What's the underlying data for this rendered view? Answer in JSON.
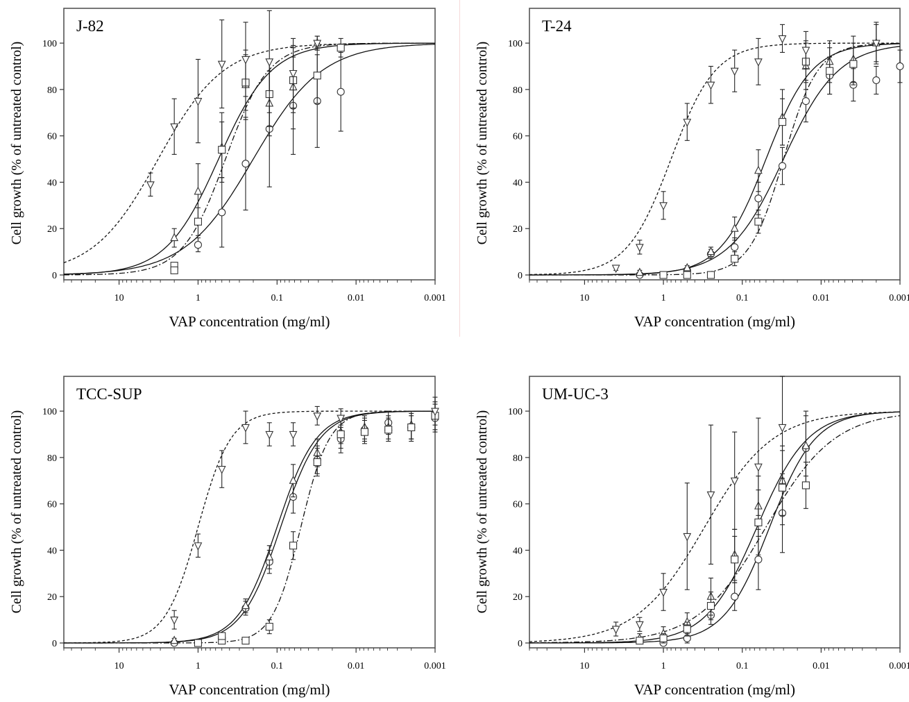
{
  "figure": {
    "ylabel": "Cell growth (% of untreated control)",
    "xlabel": "VAP concentration (mg/ml)",
    "x_tick_labels": [
      "10",
      "1",
      "0.1",
      "0.01",
      "0.001"
    ],
    "y_tick_labels": [
      "0",
      "20",
      "40",
      "60",
      "80",
      "100"
    ]
  },
  "chart_data": [
    {
      "type": "scatter",
      "title": "J-82",
      "xlabel": "VAP concentration (mg/ml)",
      "ylabel": "Cell growth (% of untreated control)",
      "x_scale": "log-reversed",
      "xlim": [
        50,
        0.001
      ],
      "ylim": [
        0,
        115
      ],
      "x_ticks": [
        10,
        1,
        0.1,
        0.01,
        0.001
      ],
      "y_ticks": [
        0,
        20,
        40,
        60,
        80,
        100
      ],
      "grid": false,
      "series": [
        {
          "marker": "circle",
          "curve": "solid",
          "ec50": 0.2,
          "hill": 1.0,
          "points": [
            {
              "x": 1,
              "y": 13,
              "err": 3
            },
            {
              "x": 0.5,
              "y": 27,
              "err": 15
            },
            {
              "x": 0.25,
              "y": 48,
              "err": 20
            },
            {
              "x": 0.125,
              "y": 63,
              "err": 25
            },
            {
              "x": 0.0625,
              "y": 73,
              "err": 21
            },
            {
              "x": 0.031,
              "y": 75,
              "err": 20
            },
            {
              "x": 0.0156,
              "y": 79,
              "err": 17
            }
          ]
        },
        {
          "marker": "triangle-up",
          "curve": "solid",
          "ec50": 0.55,
          "hill": 1.3,
          "points": [
            {
              "x": 2,
              "y": 16,
              "err": 4
            },
            {
              "x": 1,
              "y": 36,
              "err": 12
            },
            {
              "x": 0.5,
              "y": 55,
              "err": 15
            },
            {
              "x": 0.25,
              "y": 82,
              "err": 15
            },
            {
              "x": 0.125,
              "y": 74,
              "err": 14
            },
            {
              "x": 0.0625,
              "y": 81,
              "err": 18
            },
            {
              "x": 0.031,
              "y": 100,
              "err": 3
            }
          ]
        },
        {
          "marker": "square",
          "curve": "dash-dot",
          "ec50": 0.45,
          "hill": 1.6,
          "points": [
            {
              "x": 2,
              "y": 4,
              "err": 0
            },
            {
              "x": 2,
              "y": 2,
              "err": 0
            },
            {
              "x": 1,
              "y": 23,
              "err": 6
            },
            {
              "x": 0.5,
              "y": 54,
              "err": 12
            },
            {
              "x": 0.25,
              "y": 83,
              "err": 12
            },
            {
              "x": 0.125,
              "y": 78,
              "err": 14
            },
            {
              "x": 0.0625,
              "y": 84,
              "err": 14
            },
            {
              "x": 0.031,
              "y": 86,
              "err": 12
            },
            {
              "x": 0.0156,
              "y": 98,
              "err": 4
            }
          ]
        },
        {
          "marker": "triangle-down",
          "curve": "dashed",
          "ec50": 3.2,
          "hill": 1.05,
          "points": [
            {
              "x": 4,
              "y": 39,
              "err": 5
            },
            {
              "x": 2,
              "y": 64,
              "err": 12
            },
            {
              "x": 1,
              "y": 75,
              "err": 18
            },
            {
              "x": 0.5,
              "y": 91,
              "err": 19
            },
            {
              "x": 0.25,
              "y": 93,
              "err": 16
            },
            {
              "x": 0.125,
              "y": 92,
              "err": 22
            },
            {
              "x": 0.0625,
              "y": 87,
              "err": 15
            },
            {
              "x": 0.031,
              "y": 100,
              "err": 3
            }
          ]
        }
      ]
    },
    {
      "type": "scatter",
      "title": "T-24",
      "xlabel": "VAP concentration (mg/ml)",
      "ylabel": "Cell growth (% of untreated control)",
      "x_scale": "log-reversed",
      "xlim": [
        50,
        0.001
      ],
      "ylim": [
        0,
        115
      ],
      "x_ticks": [
        10,
        1,
        0.1,
        0.01,
        0.001
      ],
      "y_ticks": [
        0,
        20,
        40,
        60,
        80,
        100
      ],
      "grid": false,
      "series": [
        {
          "marker": "circle",
          "curve": "solid",
          "ec50": 0.03,
          "hill": 1.25,
          "points": [
            {
              "x": 2,
              "y": 0,
              "err": 1
            },
            {
              "x": 1,
              "y": 0,
              "err": 1
            },
            {
              "x": 0.5,
              "y": 2,
              "err": 1
            },
            {
              "x": 0.25,
              "y": 9,
              "err": 2
            },
            {
              "x": 0.125,
              "y": 12,
              "err": 4
            },
            {
              "x": 0.0625,
              "y": 33,
              "err": 7
            },
            {
              "x": 0.031,
              "y": 47,
              "err": 8
            },
            {
              "x": 0.0156,
              "y": 75,
              "err": 9
            },
            {
              "x": 0.0078,
              "y": 86,
              "err": 8
            },
            {
              "x": 0.0039,
              "y": 82,
              "err": 7
            },
            {
              "x": 0.002,
              "y": 84,
              "err": 6
            },
            {
              "x": 0.001,
              "y": 90,
              "err": 7
            }
          ]
        },
        {
          "marker": "triangle-up",
          "curve": "solid",
          "ec50": 0.05,
          "hill": 1.5,
          "points": [
            {
              "x": 2,
              "y": 1,
              "err": 1
            },
            {
              "x": 0.5,
              "y": 3,
              "err": 1
            },
            {
              "x": 0.25,
              "y": 10,
              "err": 2
            },
            {
              "x": 0.125,
              "y": 20,
              "err": 5
            },
            {
              "x": 0.0625,
              "y": 45,
              "err": 9
            },
            {
              "x": 0.031,
              "y": 68,
              "err": 12
            },
            {
              "x": 0.0156,
              "y": 90,
              "err": 10
            },
            {
              "x": 0.0078,
              "y": 92,
              "err": 9
            },
            {
              "x": 0.0039,
              "y": 93,
              "err": 10
            },
            {
              "x": 0.002,
              "y": 100,
              "err": 9
            }
          ]
        },
        {
          "marker": "square",
          "curve": "dash-dot",
          "ec50": 0.03,
          "hill": 2.0,
          "points": [
            {
              "x": 1,
              "y": 0,
              "err": 1
            },
            {
              "x": 0.5,
              "y": 0,
              "err": 1
            },
            {
              "x": 0.25,
              "y": 0,
              "err": 1
            },
            {
              "x": 0.125,
              "y": 7,
              "err": 3
            },
            {
              "x": 0.0625,
              "y": 23,
              "err": 5
            },
            {
              "x": 0.031,
              "y": 66,
              "err": 10
            },
            {
              "x": 0.0156,
              "y": 92,
              "err": 9
            },
            {
              "x": 0.0078,
              "y": 88,
              "err": 10
            },
            {
              "x": 0.0039,
              "y": 91,
              "err": 9
            }
          ]
        },
        {
          "marker": "triangle-down",
          "curve": "dashed",
          "ec50": 0.8,
          "hill": 1.55,
          "points": [
            {
              "x": 4,
              "y": 3,
              "err": 1
            },
            {
              "x": 2,
              "y": 12,
              "err": 3
            },
            {
              "x": 1,
              "y": 30,
              "err": 6
            },
            {
              "x": 0.5,
              "y": 66,
              "err": 8
            },
            {
              "x": 0.25,
              "y": 82,
              "err": 8
            },
            {
              "x": 0.125,
              "y": 88,
              "err": 9
            },
            {
              "x": 0.0625,
              "y": 92,
              "err": 10
            },
            {
              "x": 0.031,
              "y": 102,
              "err": 6
            },
            {
              "x": 0.0156,
              "y": 97,
              "err": 8
            },
            {
              "x": 0.002,
              "y": 100,
              "err": 8
            }
          ]
        }
      ]
    },
    {
      "type": "scatter",
      "title": "TCC-SUP",
      "xlabel": "VAP concentration (mg/ml)",
      "ylabel": "Cell growth (% of untreated control)",
      "x_scale": "log-reversed",
      "xlim": [
        50,
        0.001
      ],
      "ylim": [
        0,
        115
      ],
      "x_ticks": [
        10,
        1,
        0.1,
        0.01,
        0.001
      ],
      "y_ticks": [
        0,
        20,
        40,
        60,
        80,
        100
      ],
      "grid": false,
      "series": [
        {
          "marker": "circle",
          "curve": "solid",
          "ec50": 0.09,
          "hill": 1.75,
          "points": [
            {
              "x": 2,
              "y": 0,
              "err": 1
            },
            {
              "x": 0.25,
              "y": 15,
              "err": 3
            },
            {
              "x": 0.125,
              "y": 35,
              "err": 5
            },
            {
              "x": 0.0625,
              "y": 63,
              "err": 7
            },
            {
              "x": 0.031,
              "y": 79,
              "err": 6
            },
            {
              "x": 0.0156,
              "y": 88,
              "err": 6
            },
            {
              "x": 0.0078,
              "y": 92,
              "err": 5
            },
            {
              "x": 0.0039,
              "y": 95,
              "err": 5
            },
            {
              "x": 0.002,
              "y": 93,
              "err": 5
            },
            {
              "x": 0.001,
              "y": 97,
              "err": 6
            }
          ]
        },
        {
          "marker": "triangle-up",
          "curve": "solid",
          "ec50": 0.1,
          "hill": 1.75,
          "points": [
            {
              "x": 2,
              "y": 1,
              "err": 1
            },
            {
              "x": 0.25,
              "y": 16,
              "err": 3
            },
            {
              "x": 0.125,
              "y": 37,
              "err": 5
            },
            {
              "x": 0.0625,
              "y": 70,
              "err": 7
            },
            {
              "x": 0.031,
              "y": 82,
              "err": 6
            },
            {
              "x": 0.0156,
              "y": 91,
              "err": 5
            },
            {
              "x": 0.0078,
              "y": 93,
              "err": 5
            },
            {
              "x": 0.0039,
              "y": 93,
              "err": 5
            },
            {
              "x": 0.002,
              "y": 94,
              "err": 6
            }
          ]
        },
        {
          "marker": "square",
          "curve": "dash-dot",
          "ec50": 0.05,
          "hill": 2.4,
          "points": [
            {
              "x": 1,
              "y": 0,
              "err": 1
            },
            {
              "x": 0.5,
              "y": 1,
              "err": 1
            },
            {
              "x": 0.5,
              "y": 3,
              "err": 1
            },
            {
              "x": 0.25,
              "y": 1,
              "err": 1
            },
            {
              "x": 0.125,
              "y": 7,
              "err": 3
            },
            {
              "x": 0.0625,
              "y": 42,
              "err": 6
            },
            {
              "x": 0.031,
              "y": 78,
              "err": 6
            },
            {
              "x": 0.0156,
              "y": 90,
              "err": 6
            },
            {
              "x": 0.0078,
              "y": 91,
              "err": 5
            },
            {
              "x": 0.0039,
              "y": 92,
              "err": 5
            },
            {
              "x": 0.002,
              "y": 93,
              "err": 6
            },
            {
              "x": 0.001,
              "y": 98,
              "err": 6
            }
          ]
        },
        {
          "marker": "triangle-down",
          "curve": "dashed",
          "ec50": 1.0,
          "hill": 2.1,
          "points": [
            {
              "x": 2,
              "y": 10,
              "err": 4
            },
            {
              "x": 1,
              "y": 42,
              "err": 5
            },
            {
              "x": 0.5,
              "y": 75,
              "err": 8
            },
            {
              "x": 0.25,
              "y": 93,
              "err": 7
            },
            {
              "x": 0.125,
              "y": 90,
              "err": 5
            },
            {
              "x": 0.0625,
              "y": 90,
              "err": 5
            },
            {
              "x": 0.031,
              "y": 98,
              "err": 4
            },
            {
              "x": 0.0156,
              "y": 97,
              "err": 4
            },
            {
              "x": 0.001,
              "y": 100,
              "err": 6
            }
          ]
        }
      ]
    },
    {
      "type": "scatter",
      "title": "UM-UC-3",
      "xlabel": "VAP concentration (mg/ml)",
      "ylabel": "Cell growth (% of untreated control)",
      "x_scale": "log-reversed",
      "xlim": [
        50,
        0.001
      ],
      "ylim": [
        0,
        115
      ],
      "x_ticks": [
        10,
        1,
        0.1,
        0.01,
        0.001
      ],
      "y_ticks": [
        0,
        20,
        40,
        60,
        80,
        100
      ],
      "grid": false,
      "series": [
        {
          "marker": "circle",
          "curve": "solid",
          "ec50": 0.045,
          "hill": 1.5,
          "points": [
            {
              "x": 1,
              "y": 0,
              "err": 1
            },
            {
              "x": 0.5,
              "y": 2,
              "err": 2
            },
            {
              "x": 0.25,
              "y": 12,
              "err": 4
            },
            {
              "x": 0.125,
              "y": 20,
              "err": 6
            },
            {
              "x": 0.0625,
              "y": 36,
              "err": 13
            },
            {
              "x": 0.031,
              "y": 56,
              "err": 17
            },
            {
              "x": 0.0156,
              "y": 84,
              "err": 16
            }
          ]
        },
        {
          "marker": "triangle-up",
          "curve": "solid",
          "ec50": 0.065,
          "hill": 1.35,
          "points": [
            {
              "x": 2,
              "y": 2,
              "err": 2
            },
            {
              "x": 1,
              "y": 4,
              "err": 3
            },
            {
              "x": 0.5,
              "y": 9,
              "err": 4
            },
            {
              "x": 0.25,
              "y": 20,
              "err": 8
            },
            {
              "x": 0.125,
              "y": 38,
              "err": 11
            },
            {
              "x": 0.0625,
              "y": 59,
              "err": 13
            },
            {
              "x": 0.031,
              "y": 70,
              "err": 15
            },
            {
              "x": 0.0156,
              "y": 85,
              "err": 13
            }
          ]
        },
        {
          "marker": "square",
          "curve": "dash-dot",
          "ec50": 0.05,
          "hill": 1.0,
          "points": [
            {
              "x": 2,
              "y": 1,
              "err": 1
            },
            {
              "x": 1,
              "y": 2,
              "err": 2
            },
            {
              "x": 0.5,
              "y": 6,
              "err": 3
            },
            {
              "x": 0.25,
              "y": 16,
              "err": 6
            },
            {
              "x": 0.125,
              "y": 36,
              "err": 10
            },
            {
              "x": 0.0625,
              "y": 52,
              "err": 14
            },
            {
              "x": 0.031,
              "y": 67,
              "err": 16
            },
            {
              "x": 0.0156,
              "y": 68,
              "err": 10
            }
          ]
        },
        {
          "marker": "triangle-down",
          "curve": "dashed",
          "ec50": 0.3,
          "hill": 1.0,
          "points": [
            {
              "x": 4,
              "y": 6,
              "err": 3
            },
            {
              "x": 2,
              "y": 8,
              "err": 3
            },
            {
              "x": 1,
              "y": 22,
              "err": 8
            },
            {
              "x": 0.5,
              "y": 46,
              "err": 23
            },
            {
              "x": 0.25,
              "y": 64,
              "err": 30
            },
            {
              "x": 0.125,
              "y": 70,
              "err": 21
            },
            {
              "x": 0.0625,
              "y": 76,
              "err": 21
            },
            {
              "x": 0.031,
              "y": 93,
              "err": 22
            }
          ]
        }
      ]
    }
  ]
}
